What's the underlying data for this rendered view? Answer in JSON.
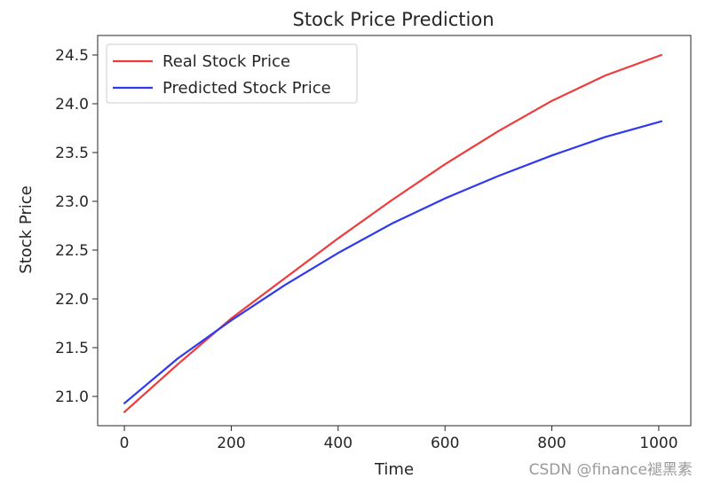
{
  "chart_data": {
    "type": "line",
    "title": "Stock Price Prediction",
    "xlabel": "Time",
    "ylabel": "Stock Price",
    "xlim": [
      -50,
      1060
    ],
    "ylim": [
      20.7,
      24.7
    ],
    "xticks": [
      0,
      200,
      400,
      600,
      800,
      1000
    ],
    "yticks": [
      21.0,
      21.5,
      22.0,
      22.5,
      23.0,
      23.5,
      24.0,
      24.5
    ],
    "grid": false,
    "legend_position": "top-left",
    "x": [
      0,
      100,
      200,
      300,
      400,
      500,
      600,
      700,
      800,
      900,
      1005
    ],
    "series": [
      {
        "name": "Real Stock Price",
        "color": "#ef3b3b",
        "values": [
          20.84,
          21.33,
          21.8,
          22.21,
          22.62,
          23.01,
          23.38,
          23.72,
          24.03,
          24.29,
          24.5
        ]
      },
      {
        "name": "Predicted Stock Price",
        "color": "#2f3aef",
        "values": [
          20.93,
          21.39,
          21.78,
          22.14,
          22.47,
          22.77,
          23.03,
          23.26,
          23.47,
          23.66,
          23.82
        ]
      }
    ]
  },
  "watermark": "CSDN @finance褪黑素"
}
